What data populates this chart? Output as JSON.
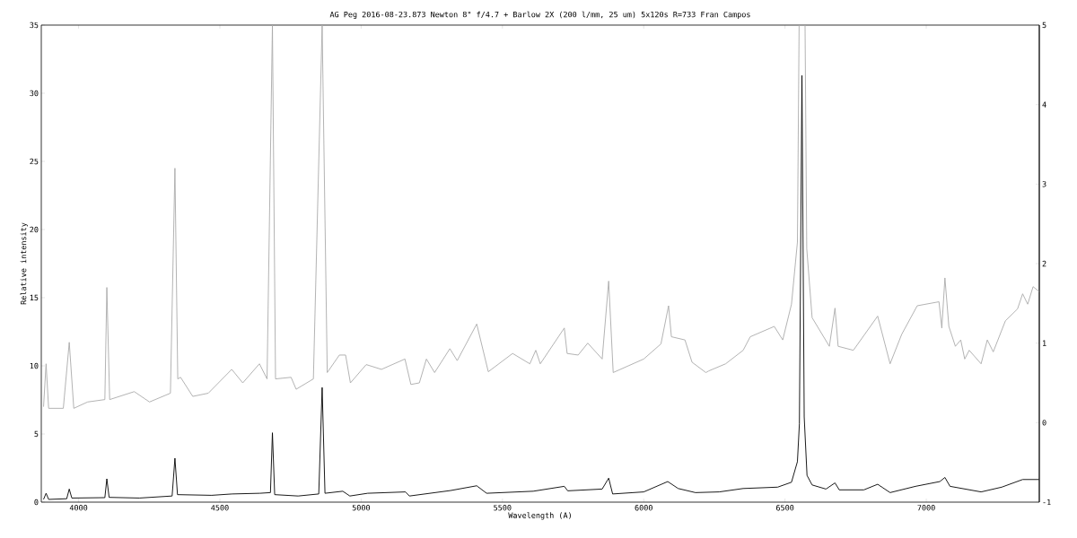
{
  "chart_data": {
    "type": "line",
    "title": "AG Peg   2016-08-23.873   Newton 8\" f/4.7 +  Barlow 2X   (200 l/mm, 25 um)   5x120s   R=733   Fran Campos",
    "xlabel": "Wavelength (A)",
    "ylabel": "Relative intensity",
    "xlim": [
      3868,
      7400
    ],
    "xticks": [
      4000,
      4500,
      5000,
      5500,
      6000,
      6500,
      7000
    ],
    "ylim": [
      0,
      35
    ],
    "yticks": [
      0,
      5,
      10,
      15,
      20,
      25,
      30,
      35
    ],
    "y2lim": [
      -1,
      5
    ],
    "y2ticks": [
      -1,
      0,
      1,
      2,
      3,
      4,
      5
    ],
    "marker": "none",
    "line_style": "solid",
    "series": [
      {
        "color": "#aaaaaa",
        "axis": "y2",
        "x": [
          3876,
          3885,
          3894,
          3946,
          3967,
          3983,
          4032,
          4093,
          4100,
          4110,
          4197,
          4251,
          4325,
          4341,
          4351,
          4361,
          4404,
          4459,
          4542,
          4581,
          4640,
          4667,
          4686,
          4697,
          4752,
          4770,
          4831,
          4862,
          4880,
          4923,
          4945,
          4962,
          5018,
          5072,
          5155,
          5176,
          5206,
          5231,
          5260,
          5314,
          5340,
          5409,
          5450,
          5536,
          5597,
          5618,
          5634,
          5719,
          5729,
          5768,
          5802,
          5853,
          5876,
          5892,
          6000,
          6061,
          6088,
          6098,
          6146,
          6171,
          6220,
          6230,
          6290,
          6352,
          6377,
          6462,
          6492,
          6523,
          6544,
          6550,
          6571,
          6577,
          6596,
          6657,
          6677,
          6688,
          6742,
          6828,
          6872,
          6913,
          6968,
          7045,
          7055,
          7066,
          7080,
          7103,
          7122,
          7136,
          7152,
          7194,
          7216,
          7237,
          7280,
          7323,
          7341,
          7359,
          7378,
          7399
        ],
        "values": [
          0.2,
          0.74,
          0.18,
          0.18,
          1.01,
          0.18,
          0.26,
          0.29,
          1.7,
          0.29,
          0.39,
          0.26,
          0.37,
          3.2,
          0.55,
          0.57,
          0.33,
          0.37,
          0.67,
          0.5,
          0.74,
          0.55,
          5,
          0.55,
          0.57,
          0.42,
          0.55,
          5,
          0.63,
          0.85,
          0.85,
          0.5,
          0.73,
          0.67,
          0.8,
          0.48,
          0.5,
          0.8,
          0.63,
          0.93,
          0.78,
          1.24,
          0.64,
          0.87,
          0.74,
          0.91,
          0.74,
          1.19,
          0.87,
          0.85,
          1.0,
          0.8,
          1.78,
          0.63,
          0.8,
          0.99,
          1.47,
          1.08,
          1.04,
          0.76,
          0.63,
          0.65,
          0.74,
          0.91,
          1.08,
          1.21,
          1.04,
          1.49,
          2.27,
          5,
          5,
          2.19,
          1.32,
          0.96,
          1.44,
          0.96,
          0.91,
          1.34,
          0.74,
          1.11,
          1.47,
          1.52,
          1.19,
          1.82,
          1.21,
          0.96,
          1.04,
          0.8,
          0.91,
          0.74,
          1.04,
          0.89,
          1.28,
          1.43,
          1.62,
          1.49,
          1.71,
          1.65
        ]
      },
      {
        "color": "#000000",
        "x": [
          3876,
          3885,
          3894,
          3958,
          3967,
          3976,
          4093,
          4100,
          4108,
          4215,
          4331,
          4341,
          4350,
          4471,
          4544,
          4642,
          4679,
          4686,
          4694,
          4777,
          4850,
          4862,
          4872,
          4935,
          4960,
          5023,
          5157,
          5171,
          5316,
          5409,
          5444,
          5609,
          5719,
          5731,
          5853,
          5876,
          5890,
          6000,
          6085,
          6122,
          6183,
          6267,
          6352,
          6474,
          6523,
          6544,
          6551,
          6560,
          6568,
          6578,
          6596,
          6645,
          6677,
          6692,
          6779,
          6828,
          6872,
          6962,
          7048,
          7066,
          7084,
          7194,
          7267,
          7341,
          7399
        ],
        "values": [
          0.2,
          0.65,
          0.2,
          0.25,
          0.96,
          0.3,
          0.33,
          1.71,
          0.35,
          0.3,
          0.45,
          3.22,
          0.55,
          0.5,
          0.6,
          0.65,
          0.7,
          5.09,
          0.55,
          0.45,
          0.6,
          8.41,
          0.65,
          0.8,
          0.45,
          0.65,
          0.75,
          0.45,
          0.85,
          1.2,
          0.65,
          0.8,
          1.16,
          0.83,
          0.96,
          1.76,
          0.6,
          0.75,
          1.51,
          1.0,
          0.7,
          0.75,
          1.0,
          1.1,
          1.46,
          2.97,
          5.74,
          31.3,
          6.25,
          1.96,
          1.26,
          0.96,
          1.41,
          0.9,
          0.9,
          1.31,
          0.7,
          1.16,
          1.51,
          1.81,
          1.16,
          0.75,
          1.1,
          1.66,
          1.66
        ]
      }
    ]
  }
}
